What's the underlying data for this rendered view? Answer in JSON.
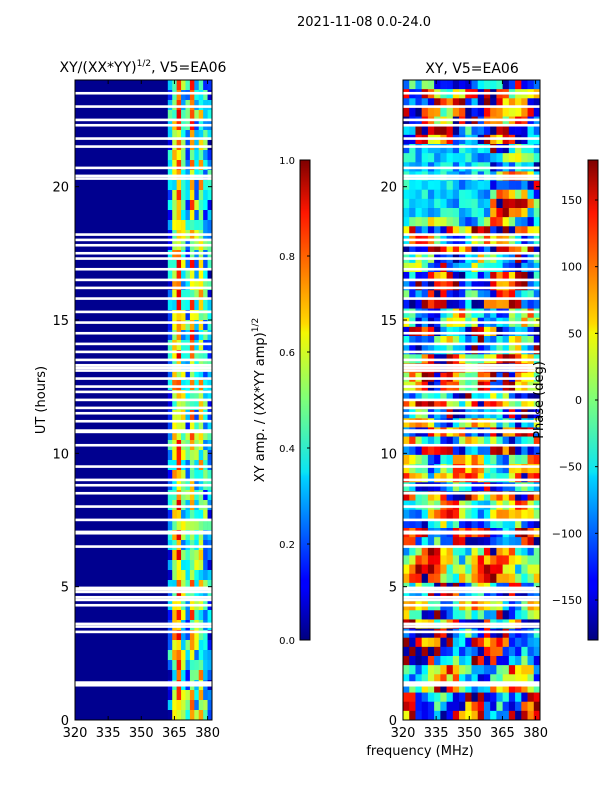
{
  "suptitle": "2021-11-08 0.0-24.0",
  "chart_data": [
    {
      "type": "heatmap",
      "title_main": "XY/(XX*YY)",
      "title_exp": "1/2",
      "title_suffix": ", V5=EA06",
      "xlabel": "",
      "ylabel": "UT (hours)",
      "xlim": [
        320,
        382
      ],
      "ylim": [
        0,
        24
      ],
      "xticks": [
        320,
        335,
        350,
        365,
        380
      ],
      "yticks": [
        0,
        5,
        10,
        15,
        20
      ],
      "colormap": "jet",
      "colorbar": {
        "label_main": "XY amp. / (XX*YY amp)",
        "label_exp": "1/2",
        "range": [
          0.0,
          1.0
        ],
        "ticks": [
          "0.0",
          "0.2",
          "0.4",
          "0.6",
          "0.8",
          "1.0"
        ],
        "tick_values": [
          0.0,
          0.2,
          0.4,
          0.6,
          0.8,
          1.0
        ]
      },
      "flagged_hours": [
        1.3,
        1.35,
        1.4,
        3.3,
        3.5,
        3.6,
        4.3,
        4.5,
        4.6,
        4.8,
        4.9,
        4.95,
        6.5,
        7.0,
        7.05,
        7.5,
        8.0,
        8.5,
        8.8,
        9.0,
        9.5,
        10.3,
        10.8,
        10.85,
        11.2,
        11.5,
        11.7,
        12.0,
        12.3,
        12.5,
        12.8,
        13.1,
        13.2,
        13.3,
        13.5,
        13.8,
        14.1,
        14.5,
        14.9,
        15.3,
        15.8,
        16.2,
        16.5,
        16.9,
        17.3,
        17.5,
        17.8,
        18.0,
        18.2,
        20.3,
        20.4,
        20.7,
        21.5,
        21.8,
        22.3,
        22.5,
        23.0,
        23.5
      ]
    },
    {
      "type": "heatmap",
      "title_main": "XY, V5=EA06",
      "xlabel": "frequency (MHz)",
      "ylabel": "",
      "xlim": [
        320,
        382
      ],
      "ylim": [
        0,
        24
      ],
      "xticks": [
        320,
        335,
        350,
        365,
        380
      ],
      "yticks": [
        0,
        5,
        10,
        15,
        20
      ],
      "colormap": "jet",
      "colorbar": {
        "label_main": "Phase (deg)",
        "range": [
          -180,
          180
        ],
        "ticks": [
          "−150",
          "−100",
          "−50",
          "0",
          "50",
          "100",
          "150"
        ],
        "tick_values": [
          -150,
          -100,
          -50,
          0,
          50,
          100,
          150
        ]
      },
      "flagged_hours": [
        1.3,
        1.35,
        1.4,
        3.3,
        3.5,
        3.6,
        4.3,
        4.5,
        4.6,
        4.8,
        4.9,
        4.95,
        6.5,
        7.0,
        7.05,
        7.5,
        8.0,
        8.5,
        8.8,
        9.0,
        9.5,
        10.3,
        10.8,
        10.85,
        11.2,
        11.5,
        11.7,
        12.0,
        12.3,
        12.5,
        12.8,
        13.1,
        13.2,
        13.3,
        13.5,
        13.8,
        14.1,
        14.5,
        14.9,
        15.3,
        15.8,
        16.2,
        16.5,
        16.9,
        17.3,
        17.5,
        17.8,
        18.0,
        18.2,
        20.3,
        20.4,
        20.7,
        21.5,
        21.8,
        22.3,
        22.5,
        23.0,
        23.5
      ]
    }
  ]
}
